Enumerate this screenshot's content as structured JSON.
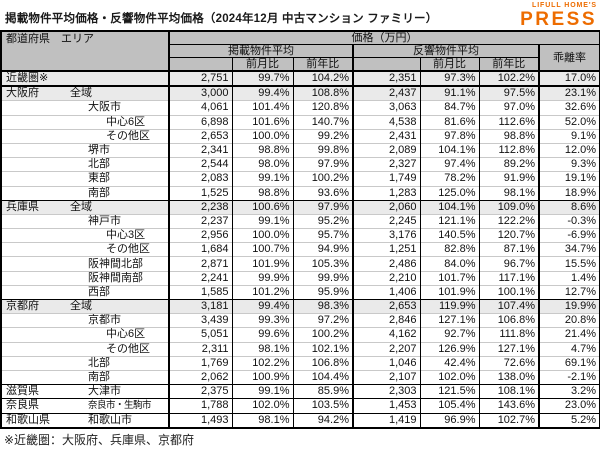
{
  "title": "掲載物件平均価格・反響物件平均価格（2024年12月 中古マンション ファミリー）",
  "logo": {
    "small": "LIFULL HOME'S",
    "large": "PRESS",
    "color": "#ED6C00"
  },
  "colors": {
    "header_bg": "#C0C0C0",
    "shaded_row": "#EAEAEA",
    "logo_orange": "#ED6C00"
  },
  "footnote": "※近畿圏：大阪府、兵庫県、京都府",
  "table": {
    "header": {
      "corner": "都道府県　エリア",
      "price_group": "価格（万円）",
      "listed_group": "掲載物件平均",
      "response_group": "反響物件平均",
      "divergence": "乖離率",
      "mom": "前月比",
      "yoy": "前年比"
    },
    "value_columns": [
      "掲載物件平均",
      "掲載前月比",
      "掲載前年比",
      "反響物件平均",
      "反響前月比",
      "反響前年比",
      "乖離率"
    ],
    "rows": [
      {
        "pref": "近畿圏※",
        "area": "",
        "indent": 4,
        "shaded": true,
        "values": [
          "2,751",
          "99.7%",
          "104.2%",
          "2,351",
          "97.3%",
          "102.2%",
          "17.0%"
        ]
      },
      {
        "pref": "大阪府",
        "area": "全域",
        "indent": 68,
        "shaded": true,
        "values": [
          "3,000",
          "99.4%",
          "108.8%",
          "2,437",
          "91.1%",
          "97.5%",
          "23.1%"
        ]
      },
      {
        "pref": "",
        "area": "大阪市",
        "indent": 86,
        "shaded": false,
        "values": [
          "4,061",
          "101.4%",
          "120.8%",
          "3,063",
          "84.7%",
          "97.0%",
          "32.6%"
        ]
      },
      {
        "pref": "",
        "area": "中心6区",
        "indent": 104,
        "shaded": false,
        "values": [
          "6,898",
          "101.6%",
          "140.7%",
          "4,538",
          "81.6%",
          "112.6%",
          "52.0%"
        ]
      },
      {
        "pref": "",
        "area": "その他区",
        "indent": 104,
        "shaded": false,
        "values": [
          "2,653",
          "100.0%",
          "99.2%",
          "2,431",
          "97.8%",
          "98.8%",
          "9.1%"
        ]
      },
      {
        "pref": "",
        "area": "堺市",
        "indent": 86,
        "shaded": false,
        "values": [
          "2,341",
          "98.8%",
          "99.8%",
          "2,089",
          "104.1%",
          "112.8%",
          "12.0%"
        ]
      },
      {
        "pref": "",
        "area": "北部",
        "indent": 86,
        "shaded": false,
        "values": [
          "2,544",
          "98.0%",
          "97.9%",
          "2,327",
          "97.4%",
          "89.2%",
          "9.3%"
        ]
      },
      {
        "pref": "",
        "area": "東部",
        "indent": 86,
        "shaded": false,
        "values": [
          "2,083",
          "99.1%",
          "100.2%",
          "1,749",
          "78.2%",
          "91.9%",
          "19.1%"
        ]
      },
      {
        "pref": "",
        "area": "南部",
        "indent": 86,
        "shaded": false,
        "values": [
          "1,525",
          "98.8%",
          "93.6%",
          "1,283",
          "125.0%",
          "98.1%",
          "18.9%"
        ]
      },
      {
        "pref": "兵庫県",
        "area": "全域",
        "indent": 68,
        "shaded": true,
        "values": [
          "2,238",
          "100.6%",
          "97.9%",
          "2,060",
          "104.1%",
          "109.0%",
          "8.6%"
        ]
      },
      {
        "pref": "",
        "area": "神戸市",
        "indent": 86,
        "shaded": false,
        "values": [
          "2,237",
          "99.1%",
          "95.2%",
          "2,245",
          "121.1%",
          "122.2%",
          "-0.3%"
        ]
      },
      {
        "pref": "",
        "area": "中心3区",
        "indent": 104,
        "shaded": false,
        "values": [
          "2,956",
          "100.0%",
          "95.7%",
          "3,176",
          "140.5%",
          "120.7%",
          "-6.9%"
        ]
      },
      {
        "pref": "",
        "area": "その他区",
        "indent": 104,
        "shaded": false,
        "values": [
          "1,684",
          "100.7%",
          "94.9%",
          "1,251",
          "82.8%",
          "87.1%",
          "34.7%"
        ]
      },
      {
        "pref": "",
        "area": "阪神間北部",
        "indent": 86,
        "shaded": false,
        "values": [
          "2,871",
          "101.9%",
          "105.3%",
          "2,486",
          "84.0%",
          "96.7%",
          "15.5%"
        ]
      },
      {
        "pref": "",
        "area": "阪神間南部",
        "indent": 86,
        "shaded": false,
        "values": [
          "2,241",
          "99.9%",
          "99.9%",
          "2,210",
          "101.7%",
          "117.1%",
          "1.4%"
        ]
      },
      {
        "pref": "",
        "area": "西部",
        "indent": 86,
        "shaded": false,
        "values": [
          "1,585",
          "101.2%",
          "95.9%",
          "1,406",
          "101.9%",
          "100.1%",
          "12.7%"
        ]
      },
      {
        "pref": "京都府",
        "area": "全域",
        "indent": 68,
        "shaded": true,
        "values": [
          "3,181",
          "99.4%",
          "98.3%",
          "2,653",
          "119.9%",
          "107.4%",
          "19.9%"
        ]
      },
      {
        "pref": "",
        "area": "京都市",
        "indent": 86,
        "shaded": false,
        "values": [
          "3,439",
          "99.3%",
          "97.2%",
          "2,846",
          "127.1%",
          "106.8%",
          "20.8%"
        ]
      },
      {
        "pref": "",
        "area": "中心6区",
        "indent": 104,
        "shaded": false,
        "values": [
          "5,051",
          "99.6%",
          "100.2%",
          "4,162",
          "92.7%",
          "111.8%",
          "21.4%"
        ]
      },
      {
        "pref": "",
        "area": "その他区",
        "indent": 104,
        "shaded": false,
        "values": [
          "2,311",
          "98.1%",
          "102.1%",
          "2,207",
          "126.9%",
          "127.1%",
          "4.7%"
        ]
      },
      {
        "pref": "",
        "area": "北部",
        "indent": 86,
        "shaded": false,
        "values": [
          "1,769",
          "102.2%",
          "106.8%",
          "1,046",
          "42.4%",
          "72.6%",
          "69.1%"
        ]
      },
      {
        "pref": "",
        "area": "南部",
        "indent": 86,
        "shaded": false,
        "values": [
          "2,062",
          "100.9%",
          "104.4%",
          "2,107",
          "102.0%",
          "138.0%",
          "-2.1%"
        ]
      },
      {
        "pref": "滋賀県",
        "area": "大津市",
        "indent": 86,
        "shaded": false,
        "values": [
          "2,375",
          "99.1%",
          "85.9%",
          "2,303",
          "121.5%",
          "108.1%",
          "3.2%"
        ]
      },
      {
        "pref": "奈良県",
        "area": "奈良市・生駒市",
        "indent": 86,
        "shaded": false,
        "values": [
          "1,788",
          "102.0%",
          "103.5%",
          "1,453",
          "105.4%",
          "143.6%",
          "23.0%"
        ]
      },
      {
        "pref": "和歌山県",
        "area": "和歌山市",
        "indent": 86,
        "shaded": false,
        "values": [
          "1,493",
          "98.1%",
          "94.2%",
          "1,419",
          "96.9%",
          "102.7%",
          "5.2%"
        ]
      }
    ]
  }
}
